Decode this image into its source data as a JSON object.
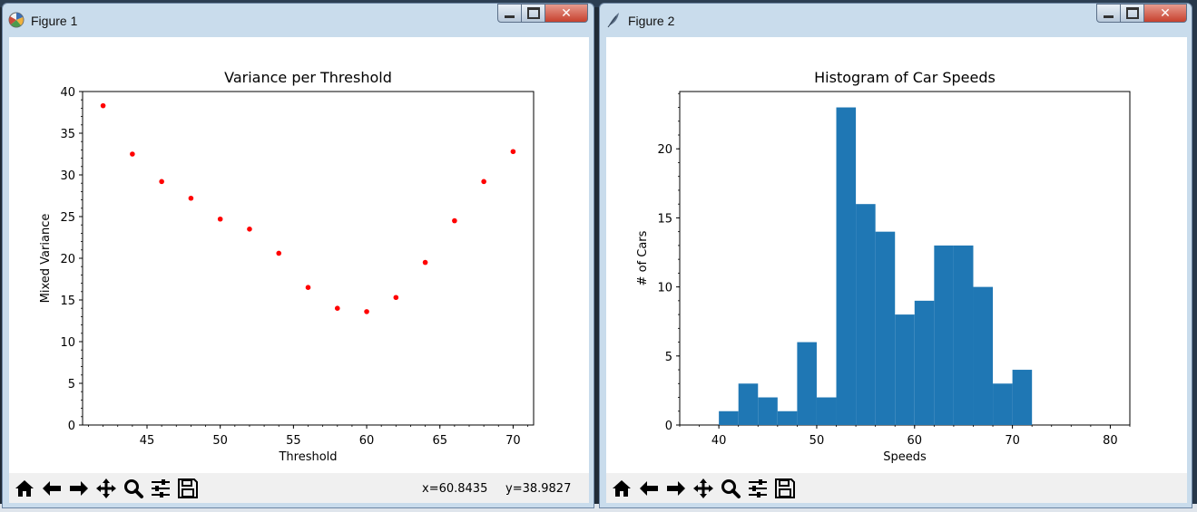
{
  "windows": [
    {
      "title": "Figure 1",
      "toolbar": [
        "home-icon",
        "back-icon",
        "forward-icon",
        "pan-icon",
        "zoom-icon",
        "configure-subplots-icon",
        "save-icon"
      ],
      "status": {
        "x": "x=60.8435",
        "y": "y=38.9827"
      }
    },
    {
      "title": "Figure 2",
      "toolbar": [
        "home-icon",
        "back-icon",
        "forward-icon",
        "pan-icon",
        "zoom-icon",
        "configure-subplots-icon",
        "save-icon"
      ]
    }
  ],
  "chart_data": [
    {
      "type": "scatter",
      "title": "Variance per Threshold",
      "xlabel": "Threshold",
      "ylabel": "Mixed Variance",
      "xlim": [
        40.6,
        71.4
      ],
      "ylim": [
        0,
        40
      ],
      "xticks": [
        45,
        50,
        55,
        60,
        65,
        70
      ],
      "yticks": [
        0,
        5,
        10,
        15,
        20,
        25,
        30,
        35,
        40
      ],
      "marker_color": "#ff0000",
      "grid": false,
      "x": [
        42,
        44,
        46,
        48,
        50,
        52,
        54,
        56,
        58,
        60,
        62,
        64,
        66,
        68,
        70
      ],
      "y": [
        38.3,
        32.5,
        29.2,
        27.2,
        24.7,
        23.5,
        20.6,
        16.5,
        14.0,
        13.6,
        15.3,
        19.5,
        24.5,
        29.2,
        32.8
      ]
    },
    {
      "type": "bar",
      "title": "Histogram of Car Speeds",
      "xlabel": "Speeds",
      "ylabel": "# of Cars",
      "xlim": [
        36,
        82
      ],
      "ylim": [
        0,
        24.15
      ],
      "xticks": [
        40,
        50,
        60,
        70,
        80
      ],
      "yticks": [
        0,
        5,
        10,
        15,
        20
      ],
      "bar_color": "#1f77b4",
      "grid": false,
      "bin_edges": [
        40,
        42,
        44,
        46,
        48,
        50,
        52,
        54,
        56,
        58,
        60,
        62,
        64,
        66,
        68,
        70,
        72
      ],
      "values": [
        1,
        3,
        2,
        1,
        6,
        2,
        23,
        16,
        14,
        8,
        9,
        13,
        13,
        10,
        3,
        4
      ]
    }
  ]
}
